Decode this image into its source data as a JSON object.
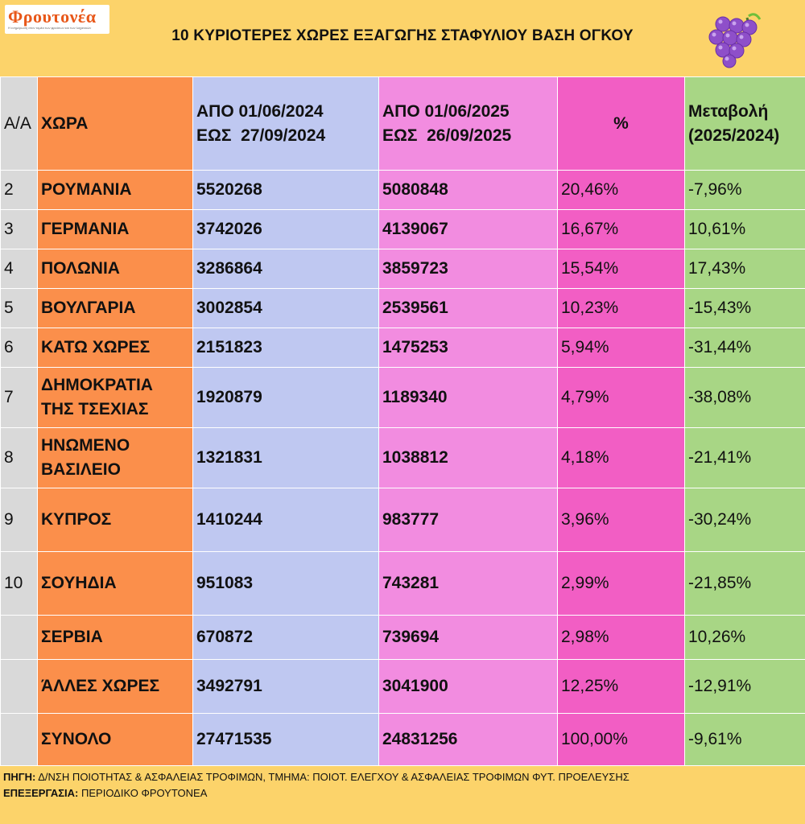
{
  "logo": {
    "name": "Φρουτονέα",
    "tagline": "Η ενημέρωση στον τομέα των φρούτων και των λαχανικών"
  },
  "title": "10 ΚΥΡΙΟΤΕΡΕΣ ΧΩΡΕΣ ΕΞΑΓΩΓΗΣ ΣΤΑΦΥΛΙΟΥ ΒΑΣΗ ΟΓΚΟΥ",
  "table": {
    "headers": {
      "aa": "Α/Α",
      "country": "ΧΩΡΑ",
      "period2024_line1": "ΑΠΟ 01/06/2024",
      "period2024_line2": "ΕΩΣ  27/09/2024",
      "period2025_line1": "ΑΠΟ 01/06/2025",
      "period2025_line2": "ΕΩΣ  26/09/2025",
      "pct": "%",
      "change_line1": "Μεταβολή",
      "change_line2": "(2025/2024)"
    },
    "rows": [
      {
        "aa": "2",
        "country": "ΡΟΥΜΑΝΙΑ",
        "v2024": "5520268",
        "v2025": "5080848",
        "pct": "20,46%",
        "change": "-7,96%"
      },
      {
        "aa": "3",
        "country": "ΓΕΡΜΑΝΙΑ",
        "v2024": "3742026",
        "v2025": "4139067",
        "pct": "16,67%",
        "change": "10,61%"
      },
      {
        "aa": "4",
        "country": "ΠΟΛΩΝΙΑ",
        "v2024": "3286864",
        "v2025": "3859723",
        "pct": "15,54%",
        "change": "17,43%"
      },
      {
        "aa": "5",
        "country": "ΒΟΥΛΓΑΡΙΑ",
        "v2024": "3002854",
        "v2025": "2539561",
        "pct": "10,23%",
        "change": "-15,43%"
      },
      {
        "aa": "6",
        "country": "ΚΑΤΩ ΧΩΡΕΣ",
        "v2024": "2151823",
        "v2025": "1475253",
        "pct": "5,94%",
        "change": "-31,44%"
      },
      {
        "aa": "7",
        "country": "ΔΗΜΟΚΡΑΤΙΑ ΤΗΣ ΤΣΕΧΙΑΣ",
        "v2024": "1920879",
        "v2025": "1189340",
        "pct": "4,79%",
        "change": "-38,08%"
      },
      {
        "aa": "8",
        "country": "ΗΝΩΜΕΝΟ ΒΑΣΙΛΕΙΟ",
        "v2024": "1321831",
        "v2025": "1038812",
        "pct": "4,18%",
        "change": "-21,41%"
      },
      {
        "aa": "9",
        "country": "ΚΥΠΡΟΣ",
        "v2024": "1410244",
        "v2025": "983777",
        "pct": "3,96%",
        "change": "-30,24%"
      },
      {
        "aa": "10",
        "country": "ΣΟΥΗΔΙΑ",
        "v2024": "951083",
        "v2025": "743281",
        "pct": "2,99%",
        "change": "-21,85%"
      },
      {
        "aa": "",
        "country": "ΣΕΡΒΙΑ",
        "v2024": "670872",
        "v2025": "739694",
        "pct": "2,98%",
        "change": "10,26%"
      },
      {
        "aa": "",
        "country": "ΆΛΛΕΣ ΧΩΡΕΣ",
        "v2024": "3492791",
        "v2025": "3041900",
        "pct": "12,25%",
        "change": "-12,91%"
      },
      {
        "aa": "",
        "country": "ΣΥΝΟΛΟ",
        "v2024": "27471535",
        "v2025": "24831256",
        "pct": "100,00%",
        "change": "-9,61%"
      }
    ]
  },
  "footer": {
    "source_label": "ΠΗΓΗ:",
    "source_text": " Δ/ΝΣΗ ΠΟΙΟΤΗΤΑΣ & ΑΣΦΑΛΕΙΑΣ ΤΡΟΦΙΜΩΝ, ΤΜΗΜΑ: ΠΟΙΟΤ. ΕΛΕΓΧΟΥ & ΑΣΦΑΛΕΙΑΣ ΤΡΟΦΙΜΩΝ ΦΥΤ. ΠΡΟΕΛΕΥΣΗΣ",
    "processing_label": "ΕΠΕΞΕΡΓΑΣΙΑ:",
    "processing_text": " ΠΕΡΙΟΔΙΚΟ ΦΡΟΥΤΟΝΕΑ"
  },
  "colors": {
    "background": "#fcd36a",
    "aa_column": "#d9d9d9",
    "country_column": "#fb8f4b",
    "period2024_column": "#bfc8f1",
    "period2025_column": "#f28ce0",
    "pct_column": "#f25ec4",
    "change_column": "#a8d685"
  },
  "icons": {
    "logo": "frutonea-logo",
    "decoration": "grapes-icon"
  }
}
